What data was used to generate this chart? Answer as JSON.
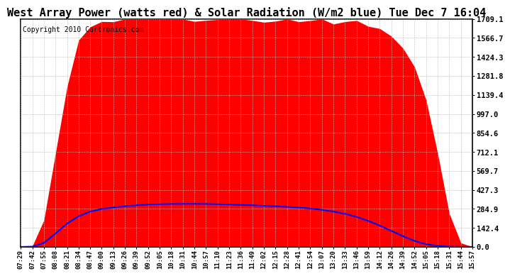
{
  "title": "West Array Power (watts red) & Solar Radiation (W/m2 blue) Tue Dec 7 16:04",
  "copyright": "Copyright 2010 Cartronics.com",
  "y_ticks": [
    0.0,
    142.4,
    284.9,
    427.3,
    569.7,
    712.1,
    854.6,
    997.0,
    1139.4,
    1281.8,
    1424.3,
    1566.7,
    1709.1
  ],
  "y_max": 1709.1,
  "y_min": 0.0,
  "x_labels": [
    "07:29",
    "07:42",
    "07:55",
    "08:08",
    "08:21",
    "08:34",
    "08:47",
    "09:00",
    "09:13",
    "09:26",
    "09:39",
    "09:52",
    "10:05",
    "10:18",
    "10:31",
    "10:44",
    "10:57",
    "11:10",
    "11:23",
    "11:36",
    "11:49",
    "12:02",
    "12:15",
    "12:28",
    "12:41",
    "12:54",
    "13:07",
    "13:20",
    "13:33",
    "13:46",
    "13:59",
    "14:12",
    "14:26",
    "14:39",
    "14:52",
    "15:05",
    "15:18",
    "15:31",
    "15:44",
    "15:57"
  ],
  "background_color": "#ffffff",
  "fill_color": "#ff0000",
  "line_color": "#0000ff",
  "grid_color": "#bbbbbb",
  "title_fontsize": 11,
  "copyright_fontsize": 7,
  "tick_fontsize": 6.5,
  "y_tick_fontsize": 7.5,
  "red_values": [
    0,
    5,
    200,
    700,
    1200,
    1550,
    1650,
    1690,
    1700,
    1705,
    1706,
    1706,
    1705,
    1704,
    1703,
    1703,
    1703,
    1700,
    1698,
    1697,
    1698,
    1697,
    1696,
    1695,
    1695,
    1694,
    1690,
    1685,
    1680,
    1675,
    1660,
    1630,
    1580,
    1490,
    1350,
    1100,
    700,
    250,
    30,
    0
  ],
  "blue_values": [
    0,
    2,
    30,
    100,
    175,
    230,
    265,
    285,
    295,
    305,
    312,
    318,
    320,
    322,
    323,
    323,
    322,
    320,
    318,
    315,
    312,
    308,
    305,
    300,
    295,
    288,
    278,
    265,
    248,
    225,
    195,
    160,
    120,
    80,
    45,
    20,
    8,
    2,
    0,
    0
  ]
}
